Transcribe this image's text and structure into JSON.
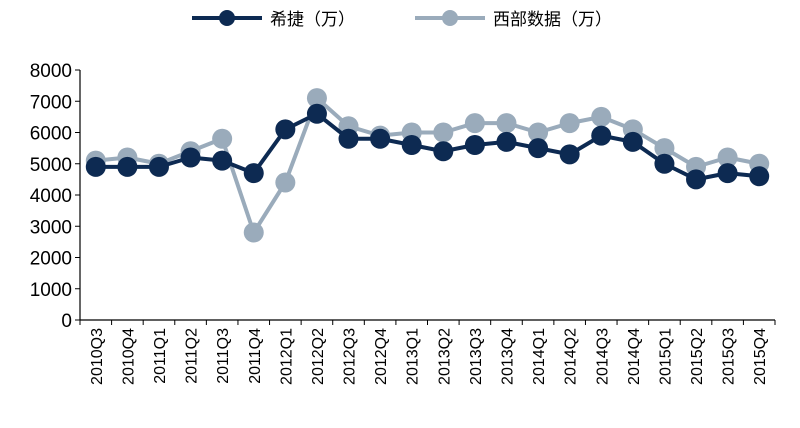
{
  "chart_data": {
    "type": "line",
    "categories": [
      "2010Q3",
      "2010Q4",
      "2011Q1",
      "2011Q2",
      "2011Q3",
      "2011Q4",
      "2012Q1",
      "2012Q2",
      "2012Q3",
      "2012Q4",
      "2013Q1",
      "2013Q2",
      "2013Q3",
      "2013Q4",
      "2014Q1",
      "2014Q2",
      "2014Q3",
      "2014Q4",
      "2015Q1",
      "2015Q2",
      "2015Q3",
      "2015Q4"
    ],
    "series": [
      {
        "name": "希捷（万）",
        "color": "#0d2a52",
        "values": [
          4900,
          4900,
          4900,
          5200,
          5100,
          4700,
          6100,
          6600,
          5800,
          5800,
          5600,
          5400,
          5600,
          5700,
          5500,
          5300,
          5900,
          5700,
          5000,
          4500,
          4700,
          4600
        ]
      },
      {
        "name": "西部数据（万）",
        "color": "#9aabbb",
        "values": [
          5100,
          5200,
          5000,
          5400,
          5800,
          2800,
          4400,
          7100,
          6200,
          5900,
          6000,
          6000,
          6300,
          6300,
          6000,
          6300,
          6500,
          6100,
          5500,
          4900,
          5200,
          5000
        ]
      }
    ],
    "ylim": [
      0,
      8000
    ],
    "yticks": [
      0,
      1000,
      2000,
      3000,
      4000,
      5000,
      6000,
      7000,
      8000
    ],
    "legend": "top",
    "grid": false
  }
}
